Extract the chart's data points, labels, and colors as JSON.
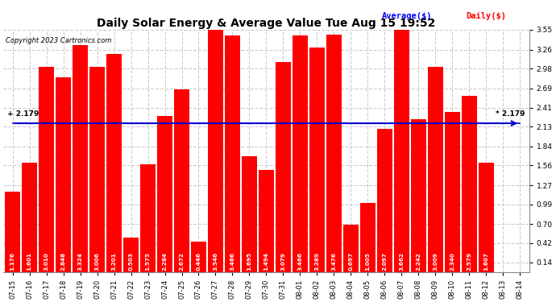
{
  "title": "Daily Solar Energy & Average Value Tue Aug 15 19:52",
  "copyright": "Copyright 2023 Cartronics.com",
  "average_line": 2.179,
  "bar_color": "#FF0000",
  "average_line_color": "#0000CC",
  "background_color": "#FFFFFF",
  "grid_color": "#CCCCCC",
  "categories": [
    "07-15",
    "07-16",
    "07-17",
    "07-18",
    "07-19",
    "07-20",
    "07-21",
    "07-22",
    "07-23",
    "07-24",
    "07-25",
    "07-26",
    "07-27",
    "07-28",
    "07-29",
    "07-30",
    "07-31",
    "08-01",
    "08-02",
    "08-03",
    "08-04",
    "08-05",
    "08-06",
    "08-07",
    "08-08",
    "08-09",
    "08-10",
    "08-11",
    "08-12",
    "08-13",
    "08-14"
  ],
  "values": [
    1.176,
    1.601,
    3.01,
    2.848,
    3.324,
    3.006,
    3.201,
    0.503,
    1.575,
    2.284,
    2.672,
    0.446,
    3.546,
    3.466,
    1.695,
    1.494,
    3.079,
    3.466,
    3.289,
    3.476,
    0.697,
    1.005,
    2.097,
    3.662,
    2.242,
    3.009,
    2.34,
    2.579,
    1.607,
    0.0,
    0.0
  ],
  "ylim_min": 0,
  "ylim_max": 3.55,
  "yticks": [
    0.14,
    0.42,
    0.7,
    0.99,
    1.27,
    1.56,
    1.84,
    2.13,
    2.41,
    2.69,
    2.98,
    3.26,
    3.55
  ],
  "legend_average_color": "#0000FF",
  "legend_daily_color": "#FF0000",
  "avg_label_left": "+ 2.179",
  "avg_label_right": "* 2.179"
}
